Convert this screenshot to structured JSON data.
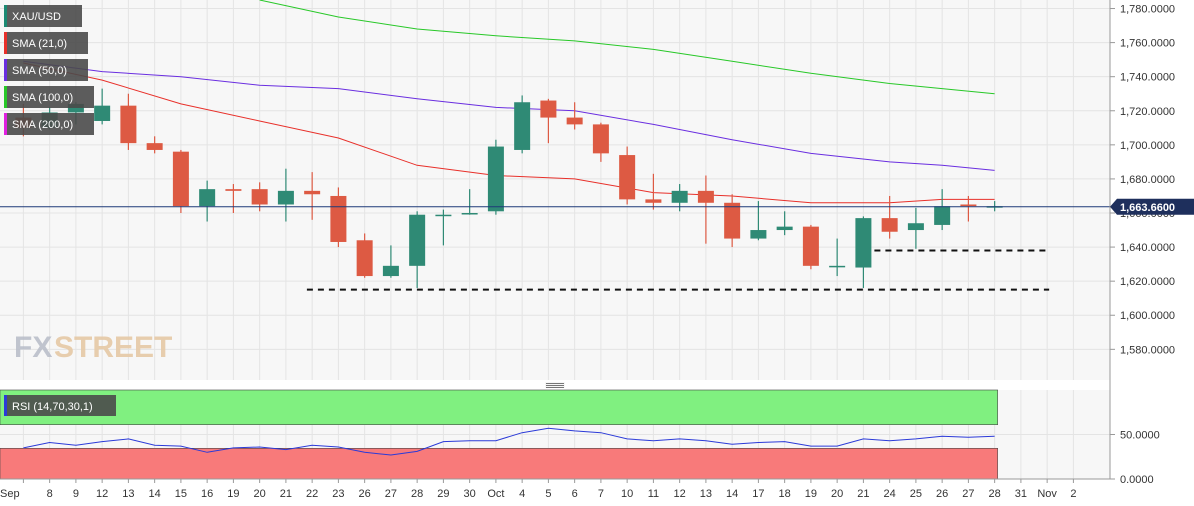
{
  "chart_data": {
    "type": "candlestick",
    "symbol": "XAU/USD",
    "legend": [
      {
        "label": "XAU/USD",
        "color": "#1b8a73"
      },
      {
        "label": "SMA (21,0)",
        "color": "#e8302a"
      },
      {
        "label": "SMA (50,0)",
        "color": "#6a2ee0"
      },
      {
        "label": "SMA (100,0)",
        "color": "#28c828"
      },
      {
        "label": "SMA (200,0)",
        "color": "#e020e0"
      }
    ],
    "price_axis": {
      "ticks": [
        "1,780.0000",
        "1,760.0000",
        "1,740.0000",
        "1,720.0000",
        "1,700.0000",
        "1,680.0000",
        "1,660.0000",
        "1,640.0000",
        "1,620.0000",
        "1,600.0000",
        "1,580.0000"
      ],
      "tick_values": [
        1780,
        1760,
        1740,
        1720,
        1700,
        1680,
        1660,
        1640,
        1620,
        1600,
        1580
      ],
      "ylim": [
        1562,
        1785
      ]
    },
    "current_price": {
      "value": 1663.66,
      "label": "1,663.6600"
    },
    "x_labels": [
      "Sep",
      "8",
      "9",
      "12",
      "13",
      "14",
      "15",
      "16",
      "19",
      "20",
      "21",
      "22",
      "23",
      "26",
      "27",
      "28",
      "29",
      "30",
      "Oct",
      "4",
      "5",
      "6",
      "7",
      "10",
      "11",
      "12",
      "13",
      "14",
      "17",
      "18",
      "19",
      "20",
      "21",
      "24",
      "25",
      "26",
      "27",
      "28",
      "31",
      "Nov",
      "2"
    ],
    "candles": [
      {
        "i": 0,
        "o": 1716,
        "h": 1724,
        "l": 1705,
        "c": 1710
      },
      {
        "i": 1,
        "o": 1710,
        "h": 1722,
        "l": 1709,
        "c": 1719
      },
      {
        "i": 2,
        "o": 1719,
        "h": 1725,
        "l": 1712,
        "c": 1724
      },
      {
        "i": 3,
        "o": 1714,
        "h": 1733,
        "l": 1712,
        "c": 1723
      },
      {
        "i": 4,
        "o": 1723,
        "h": 1730,
        "l": 1697,
        "c": 1701
      },
      {
        "i": 5,
        "o": 1701,
        "h": 1705,
        "l": 1695,
        "c": 1697
      },
      {
        "i": 6,
        "o": 1696,
        "h": 1697,
        "l": 1660,
        "c": 1664
      },
      {
        "i": 7,
        "o": 1664,
        "h": 1679,
        "l": 1655,
        "c": 1674
      },
      {
        "i": 8,
        "o": 1674,
        "h": 1677,
        "l": 1660,
        "c": 1673
      },
      {
        "i": 9,
        "o": 1674,
        "h": 1678,
        "l": 1661,
        "c": 1665
      },
      {
        "i": 10,
        "o": 1665,
        "h": 1686,
        "l": 1655,
        "c": 1673
      },
      {
        "i": 11,
        "o": 1673,
        "h": 1684,
        "l": 1656,
        "c": 1671
      },
      {
        "i": 12,
        "o": 1670,
        "h": 1675,
        "l": 1640,
        "c": 1643
      },
      {
        "i": 13,
        "o": 1644,
        "h": 1648,
        "l": 1622,
        "c": 1623
      },
      {
        "i": 14,
        "o": 1623,
        "h": 1641,
        "l": 1622,
        "c": 1629
      },
      {
        "i": 15,
        "o": 1629,
        "h": 1661,
        "l": 1616,
        "c": 1659
      },
      {
        "i": 16,
        "o": 1659,
        "h": 1662,
        "l": 1641,
        "c": 1659
      },
      {
        "i": 17,
        "o": 1660,
        "h": 1674,
        "l": 1659,
        "c": 1660
      },
      {
        "i": 18,
        "o": 1661,
        "h": 1703,
        "l": 1659,
        "c": 1699
      },
      {
        "i": 19,
        "o": 1697,
        "h": 1729,
        "l": 1695,
        "c": 1725
      },
      {
        "i": 20,
        "o": 1726,
        "h": 1727,
        "l": 1701,
        "c": 1716
      },
      {
        "i": 21,
        "o": 1716,
        "h": 1725,
        "l": 1709,
        "c": 1712
      },
      {
        "i": 22,
        "o": 1712,
        "h": 1713,
        "l": 1690,
        "c": 1695
      },
      {
        "i": 23,
        "o": 1694,
        "h": 1699,
        "l": 1665,
        "c": 1668
      },
      {
        "i": 24,
        "o": 1668,
        "h": 1683,
        "l": 1662,
        "c": 1666
      },
      {
        "i": 25,
        "o": 1666,
        "h": 1677,
        "l": 1661,
        "c": 1673
      },
      {
        "i": 26,
        "o": 1673,
        "h": 1682,
        "l": 1642,
        "c": 1666
      },
      {
        "i": 27,
        "o": 1666,
        "h": 1671,
        "l": 1640,
        "c": 1645
      },
      {
        "i": 28,
        "o": 1645,
        "h": 1667,
        "l": 1644,
        "c": 1650
      },
      {
        "i": 29,
        "o": 1650,
        "h": 1661,
        "l": 1647,
        "c": 1652
      },
      {
        "i": 30,
        "o": 1652,
        "h": 1653,
        "l": 1627,
        "c": 1629
      },
      {
        "i": 31,
        "o": 1629,
        "h": 1645,
        "l": 1623,
        "c": 1629
      },
      {
        "i": 32,
        "o": 1628,
        "h": 1658,
        "l": 1616,
        "c": 1657
      },
      {
        "i": 33,
        "o": 1657,
        "h": 1670,
        "l": 1645,
        "c": 1649
      },
      {
        "i": 34,
        "o": 1650,
        "h": 1663,
        "l": 1639,
        "c": 1654
      },
      {
        "i": 35,
        "o": 1653,
        "h": 1674,
        "l": 1650,
        "c": 1664
      },
      {
        "i": 36,
        "o": 1665,
        "h": 1670,
        "l": 1655,
        "c": 1664
      },
      {
        "i": 37,
        "o": 1664,
        "h": 1667,
        "l": 1661,
        "c": 1664
      }
    ],
    "sma": [
      {
        "period": 21,
        "color": "#e8302a",
        "points": [
          [
            0,
            1748
          ],
          [
            3,
            1738
          ],
          [
            6,
            1724
          ],
          [
            9,
            1714
          ],
          [
            12,
            1704
          ],
          [
            15,
            1688
          ],
          [
            18,
            1682
          ],
          [
            21,
            1680
          ],
          [
            24,
            1672
          ],
          [
            27,
            1670
          ],
          [
            30,
            1666
          ],
          [
            33,
            1666
          ],
          [
            35,
            1668
          ],
          [
            37,
            1668
          ]
        ]
      },
      {
        "period": 50,
        "color": "#6a2ee0",
        "points": [
          [
            0,
            1749
          ],
          [
            3,
            1743
          ],
          [
            6,
            1740
          ],
          [
            9,
            1735
          ],
          [
            12,
            1733
          ],
          [
            15,
            1727
          ],
          [
            18,
            1722
          ],
          [
            21,
            1720
          ],
          [
            24,
            1712
          ],
          [
            27,
            1703
          ],
          [
            30,
            1695
          ],
          [
            33,
            1690
          ],
          [
            35,
            1688
          ],
          [
            37,
            1685
          ]
        ]
      },
      {
        "period": 100,
        "color": "#28c828",
        "points": [
          [
            9,
            1785
          ],
          [
            12,
            1775
          ],
          [
            15,
            1768
          ],
          [
            18,
            1764
          ],
          [
            21,
            1761
          ],
          [
            24,
            1756
          ],
          [
            27,
            1749
          ],
          [
            30,
            1742
          ],
          [
            33,
            1736
          ],
          [
            35,
            1733
          ],
          [
            37,
            1730
          ]
        ]
      }
    ],
    "support_lines": [
      {
        "from": 10.8,
        "to": 39,
        "value": 1615,
        "style": "dashed"
      },
      {
        "from": 32,
        "to": 39,
        "value": 1638,
        "style": "dashed"
      }
    ],
    "rsi": {
      "label": "RSI (14,70,30,1)",
      "ticks": [
        "50.0000",
        "0.0000"
      ],
      "tick_values": [
        50,
        0
      ],
      "ylim": [
        0,
        100
      ],
      "overbought": 70,
      "oversold": 30,
      "values": [
        35,
        41,
        38,
        42,
        45,
        38,
        37,
        30,
        35,
        36,
        33,
        38,
        36,
        30,
        27,
        31,
        42,
        43,
        43,
        52,
        57,
        54,
        52,
        45,
        43,
        45,
        43,
        39,
        41,
        42,
        37,
        37,
        45,
        43,
        45,
        48,
        47,
        48
      ]
    },
    "colors": {
      "up": "#2f8a75",
      "down": "#dd5a43",
      "rsi_line": "#2b3ad8",
      "overbought_zone": "#80f080",
      "oversold_zone": "#f87a7a",
      "price_line": "#1e3a78"
    }
  }
}
